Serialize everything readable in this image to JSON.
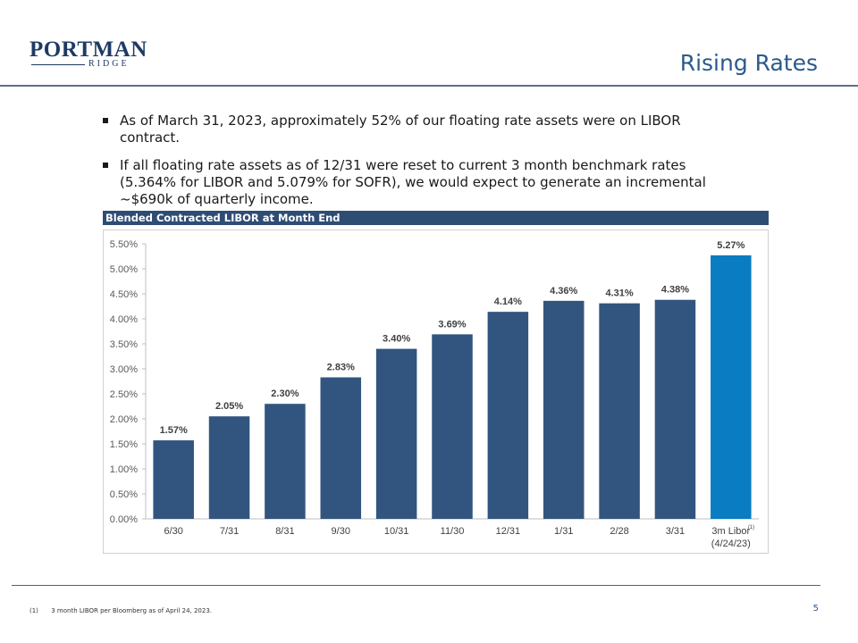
{
  "logo": {
    "main": "PORTMAN",
    "sub": "RIDGE"
  },
  "page_title": "Rising Rates",
  "bullets": [
    "As of March 31, 2023, approximately 52% of our floating rate assets were on LIBOR contract.",
    "If all floating rate assets as of 12/31 were reset to current 3 month benchmark rates (5.364% for LIBOR and 5.079% for SOFR), we would expect to generate an incremental ~$690k of quarterly income."
  ],
  "section_title": "Blended Contracted LIBOR at Month End",
  "chart_data": {
    "type": "bar",
    "categories": [
      "6/30",
      "7/31",
      "8/31",
      "9/30",
      "10/31",
      "11/30",
      "12/31",
      "1/31",
      "2/28",
      "3/31",
      "3m Libor"
    ],
    "category_sublabels": [
      "",
      "",
      "",
      "",
      "",
      "",
      "",
      "",
      "",
      "",
      "(4/24/23)"
    ],
    "category_superscripts": [
      "",
      "",
      "",
      "",
      "",
      "",
      "",
      "",
      "",
      "",
      "(1)"
    ],
    "values": [
      1.57,
      2.05,
      2.3,
      2.83,
      3.4,
      3.69,
      4.14,
      4.36,
      4.31,
      4.38,
      5.27
    ],
    "data_labels": [
      "1.57%",
      "2.05%",
      "2.30%",
      "2.83%",
      "3.40%",
      "3.69%",
      "4.14%",
      "4.36%",
      "4.31%",
      "4.38%",
      "5.27%"
    ],
    "bar_colors": [
      "#32557f",
      "#32557f",
      "#32557f",
      "#32557f",
      "#32557f",
      "#32557f",
      "#32557f",
      "#32557f",
      "#32557f",
      "#32557f",
      "#0a7cc1"
    ],
    "ylim": [
      0,
      5.5
    ],
    "yticks": [
      "0.00%",
      "0.50%",
      "1.00%",
      "1.50%",
      "2.00%",
      "2.50%",
      "3.00%",
      "3.50%",
      "4.00%",
      "4.50%",
      "5.00%",
      "5.50%"
    ],
    "ytick_values": [
      0,
      0.5,
      1.0,
      1.5,
      2.0,
      2.5,
      3.0,
      3.5,
      4.0,
      4.5,
      5.0,
      5.5
    ],
    "grid": false,
    "xlabel": "",
    "ylabel": ""
  },
  "footnote": {
    "number": "(1)",
    "text": "3 month LIBOR per Bloomberg as of April 24, 2023."
  },
  "page_number": "5",
  "colors": {
    "accent": "#2b5a8c",
    "bar": "#32557f",
    "highlight_bar": "#0a7cc1",
    "section_bar": "#2e4d75"
  }
}
